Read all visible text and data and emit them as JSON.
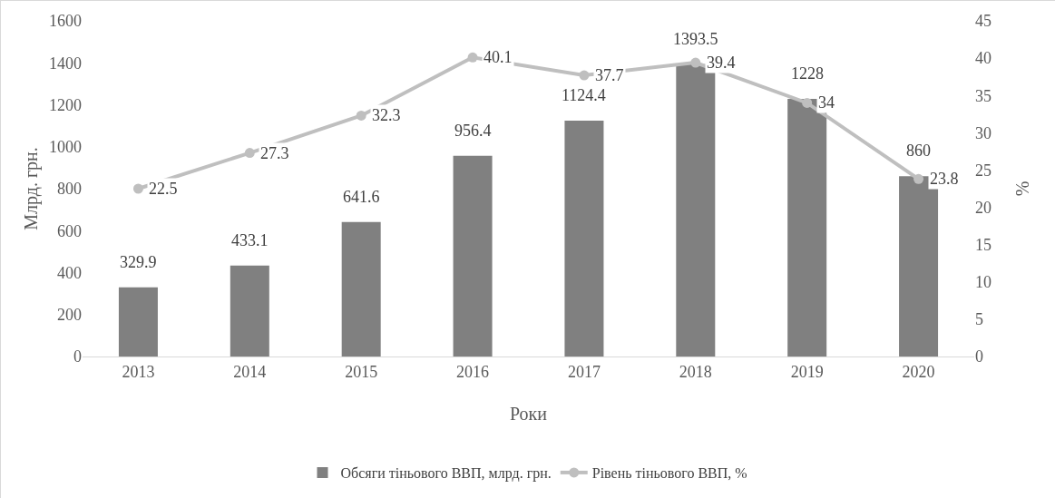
{
  "chart_data": {
    "type": "bar",
    "categories": [
      "2013",
      "2014",
      "2015",
      "2016",
      "2017",
      "2018",
      "2019",
      "2020"
    ],
    "series": [
      {
        "name": "Обсяги тіньового ВВП, млрд. грн.",
        "color": "#808080",
        "values": [
          329.9,
          433.1,
          641.6,
          956.4,
          1124.4,
          1393.5,
          1228,
          860
        ]
      },
      {
        "name": "Рівень тіньового ВВП, %",
        "type": "line",
        "axis": "y2",
        "color": "#bfbfbf",
        "values": [
          22.5,
          27.3,
          32.3,
          40.1,
          37.7,
          39.4,
          34,
          23.8
        ]
      }
    ],
    "xlabel": "Роки",
    "ylabel": "Млрд. грн.",
    "y2label": "%",
    "ylim": [
      0,
      1600
    ],
    "yticks": [
      0,
      200,
      400,
      600,
      800,
      1000,
      1200,
      1400,
      1600
    ],
    "y2lim": [
      0,
      45
    ],
    "y2ticks": [
      0,
      5,
      10,
      15,
      20,
      25,
      30,
      35,
      40,
      45
    ],
    "legend": "bottom",
    "marker": "circle",
    "data_labels": true
  }
}
